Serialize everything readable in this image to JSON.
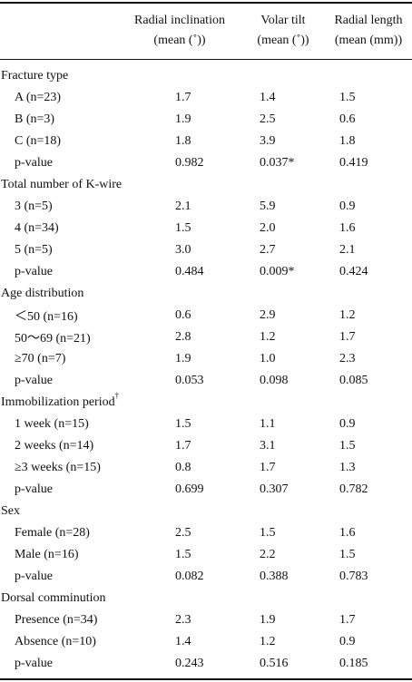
{
  "header": {
    "col1_l1": "Radial inclination",
    "col1_l2": "(mean (˚))",
    "col2_l1": "Volar tilt",
    "col2_l2": "(mean (˚))",
    "col3_l1": "Radial length",
    "col3_l2": "(mean (mm))"
  },
  "sections": [
    {
      "title": "Fracture type",
      "rows": [
        {
          "label": "A (n=23)",
          "ri": "1.7",
          "vt": "1.4",
          "rl": "1.5"
        },
        {
          "label": "B (n=3)",
          "ri": "1.9",
          "vt": "2.5",
          "rl": "0.6"
        },
        {
          "label": "C (n=18)",
          "ri": "1.8",
          "vt": "3.9",
          "rl": "1.8"
        },
        {
          "label": "p-value",
          "ri": "0.982",
          "vt": "0.037*",
          "rl": "0.419"
        }
      ]
    },
    {
      "title": "Total number of K-wire",
      "rows": [
        {
          "label": "3 (n=5)",
          "ri": "2.1",
          "vt": "5.9",
          "rl": "0.9"
        },
        {
          "label": "4 (n=34)",
          "ri": "1.5",
          "vt": "2.0",
          "rl": "1.6"
        },
        {
          "label": "5 (n=5)",
          "ri": "3.0",
          "vt": "2.7",
          "rl": "2.1"
        },
        {
          "label": "p-value",
          "ri": "0.484",
          "vt": "0.009*",
          "rl": "0.424"
        }
      ]
    },
    {
      "title": "Age distribution",
      "rows": [
        {
          "label": "＜50 (n=16)",
          "ri": "0.6",
          "vt": "2.9",
          "rl": "1.2"
        },
        {
          "label": "50～69 (n=21)",
          "ri": "2.8",
          "vt": "1.2",
          "rl": "1.7"
        },
        {
          "label": "≥70 (n=7)",
          "ri": "1.9",
          "vt": "1.0",
          "rl": "2.3"
        },
        {
          "label": "p-value",
          "ri": "0.053",
          "vt": "0.098",
          "rl": "0.085"
        }
      ]
    },
    {
      "title": "Immobilization period",
      "title_mark": "†",
      "rows": [
        {
          "label": "1 week (n=15)",
          "ri": "1.5",
          "vt": "1.1",
          "rl": "0.9"
        },
        {
          "label": "2 weeks (n=14)",
          "ri": "1.7",
          "vt": "3.1",
          "rl": "1.5"
        },
        {
          "label": "≥3 weeks (n=15)",
          "ri": "0.8",
          "vt": "1.7",
          "rl": "1.3"
        },
        {
          "label": "p-value",
          "ri": "0.699",
          "vt": "0.307",
          "rl": "0.782"
        }
      ]
    },
    {
      "title": "Sex",
      "rows": [
        {
          "label": "Female (n=28)",
          "ri": "2.5",
          "vt": "1.5",
          "rl": "1.6"
        },
        {
          "label": "Male (n=16)",
          "ri": "1.5",
          "vt": "2.2",
          "rl": "1.5"
        },
        {
          "label": "p-value",
          "ri": "0.082",
          "vt": "0.388",
          "rl": "0.783"
        }
      ]
    },
    {
      "title": "Dorsal comminution",
      "rows": [
        {
          "label": "Presence (n=34)",
          "ri": "2.3",
          "vt": "1.9",
          "rl": "1.7"
        },
        {
          "label": "Absence (n=10)",
          "ri": "1.4",
          "vt": "1.2",
          "rl": "0.9"
        },
        {
          "label": "p-value",
          "ri": "0.243",
          "vt": "0.516",
          "rl": "0.185"
        }
      ]
    }
  ]
}
